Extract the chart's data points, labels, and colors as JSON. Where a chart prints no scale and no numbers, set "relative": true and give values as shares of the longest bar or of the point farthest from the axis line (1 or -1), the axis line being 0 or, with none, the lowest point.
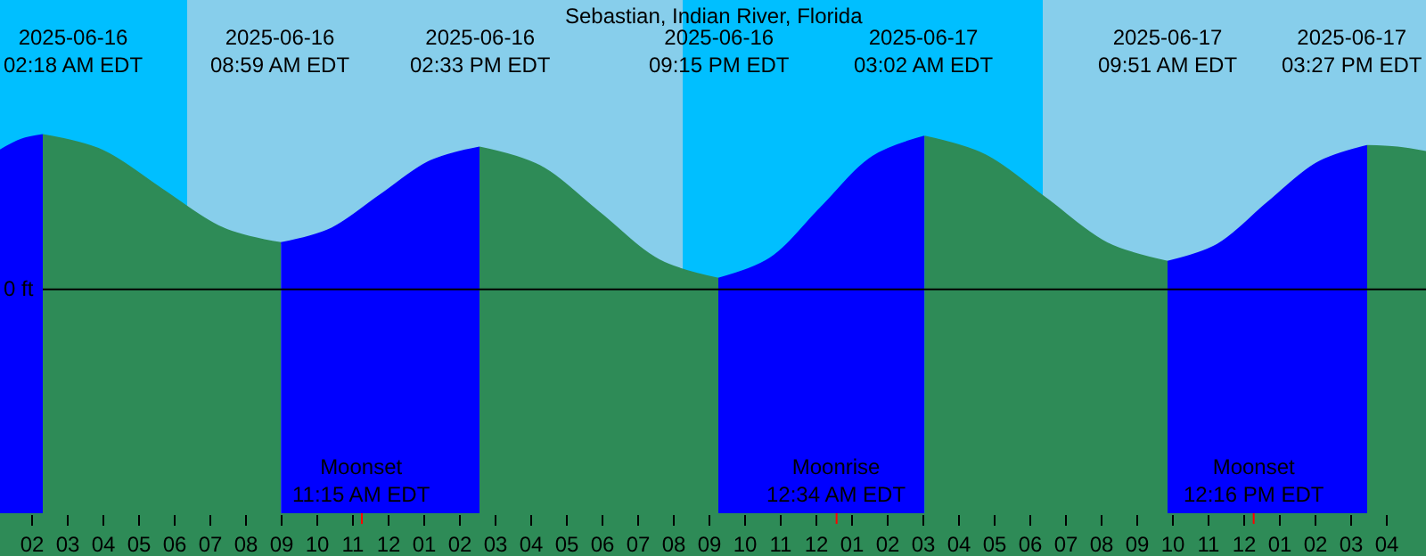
{
  "chart_data": {
    "type": "area",
    "title": "Sebastian, Indian River, Florida",
    "relative": true,
    "xlim": [
      "2025-06-16T01:06",
      "2025-06-17T17:06"
    ],
    "xticks": [
      {
        "value": "2025-06-16T02:00",
        "label": "02"
      },
      {
        "value": "2025-06-16T03:00",
        "label": "03"
      },
      {
        "value": "2025-06-16T04:00",
        "label": "04"
      },
      {
        "value": "2025-06-16T05:00",
        "label": "05"
      },
      {
        "value": "2025-06-16T06:00",
        "label": "06"
      },
      {
        "value": "2025-06-16T07:00",
        "label": "07"
      },
      {
        "value": "2025-06-16T08:00",
        "label": "08"
      },
      {
        "value": "2025-06-16T09:00",
        "label": "09"
      },
      {
        "value": "2025-06-16T10:00",
        "label": "10"
      },
      {
        "value": "2025-06-16T11:00",
        "label": "11"
      },
      {
        "value": "2025-06-16T12:00",
        "label": "12"
      },
      {
        "value": "2025-06-16T13:00",
        "label": "01"
      },
      {
        "value": "2025-06-16T14:00",
        "label": "02"
      },
      {
        "value": "2025-06-16T15:00",
        "label": "03"
      },
      {
        "value": "2025-06-16T16:00",
        "label": "04"
      },
      {
        "value": "2025-06-16T17:00",
        "label": "05"
      },
      {
        "value": "2025-06-16T18:00",
        "label": "06"
      },
      {
        "value": "2025-06-16T19:00",
        "label": "07"
      },
      {
        "value": "2025-06-16T20:00",
        "label": "08"
      },
      {
        "value": "2025-06-16T21:00",
        "label": "09"
      },
      {
        "value": "2025-06-16T22:00",
        "label": "10"
      },
      {
        "value": "2025-06-16T23:00",
        "label": "11"
      },
      {
        "value": "2025-06-17T00:00",
        "label": "12"
      },
      {
        "value": "2025-06-17T01:00",
        "label": "01"
      },
      {
        "value": "2025-06-17T02:00",
        "label": "02"
      },
      {
        "value": "2025-06-17T03:00",
        "label": "03"
      },
      {
        "value": "2025-06-17T04:00",
        "label": "04"
      },
      {
        "value": "2025-06-17T05:00",
        "label": "05"
      },
      {
        "value": "2025-06-17T06:00",
        "label": "06"
      },
      {
        "value": "2025-06-17T07:00",
        "label": "07"
      },
      {
        "value": "2025-06-17T08:00",
        "label": "08"
      },
      {
        "value": "2025-06-17T09:00",
        "label": "09"
      },
      {
        "value": "2025-06-17T10:00",
        "label": "10"
      },
      {
        "value": "2025-06-17T11:00",
        "label": "11"
      },
      {
        "value": "2025-06-17T12:00",
        "label": "12"
      },
      {
        "value": "2025-06-17T13:00",
        "label": "01"
      },
      {
        "value": "2025-06-17T14:00",
        "label": "02"
      },
      {
        "value": "2025-06-17T15:00",
        "label": "03"
      },
      {
        "value": "2025-06-17T16:00",
        "label": "04"
      }
    ],
    "series": [
      {
        "color": "#0000ff",
        "x": [
          "2025-06-16T01:06",
          "2025-06-16T01:42",
          "2025-06-16T02:18"
        ],
        "values": [
          0.9,
          0.97,
          1.0
        ]
      },
      {
        "color": "#2e8b57",
        "x": [
          "2025-06-16T02:18",
          "2025-06-16T03:58",
          "2025-06-16T05:38",
          "2025-06-16T07:19",
          "2025-06-16T08:59"
        ],
        "values": [
          1.0,
          0.9,
          0.65,
          0.4,
          0.3
        ]
      },
      {
        "color": "#0000ff",
        "x": [
          "2025-06-16T08:59",
          "2025-06-16T10:22",
          "2025-06-16T11:46",
          "2025-06-16T13:10",
          "2025-06-16T14:33"
        ],
        "values": [
          0.3,
          0.39,
          0.61,
          0.83,
          0.92
        ]
      },
      {
        "color": "#2e8b57",
        "x": [
          "2025-06-16T14:33",
          "2025-06-16T16:14",
          "2025-06-16T17:54",
          "2025-06-16T19:35",
          "2025-06-16T21:15"
        ],
        "values": [
          0.92,
          0.8,
          0.5,
          0.19,
          0.07
        ]
      },
      {
        "color": "#0000ff",
        "x": [
          "2025-06-16T21:15",
          "2025-06-16T22:42",
          "2025-06-17T00:08",
          "2025-06-17T01:35",
          "2025-06-17T03:02"
        ],
        "values": [
          0.07,
          0.2,
          0.53,
          0.86,
          0.99
        ]
      },
      {
        "color": "#2e8b57",
        "x": [
          "2025-06-17T03:02",
          "2025-06-17T04:44",
          "2025-06-17T06:26",
          "2025-06-17T08:09",
          "2025-06-17T09:51"
        ],
        "values": [
          0.99,
          0.87,
          0.59,
          0.3,
          0.18
        ]
      },
      {
        "color": "#0000ff",
        "x": [
          "2025-06-17T09:51",
          "2025-06-17T11:15",
          "2025-06-17T12:39",
          "2025-06-17T14:03",
          "2025-06-17T15:27"
        ],
        "values": [
          0.18,
          0.29,
          0.56,
          0.82,
          0.93
        ]
      },
      {
        "color": "#2e8b57",
        "x": [
          "2025-06-17T15:27",
          "2025-06-17T16:18",
          "2025-06-17T17:06"
        ],
        "values": [
          0.93,
          0.92,
          0.89
        ]
      }
    ],
    "bands": [
      {
        "axis": "x",
        "from": "2025-06-16T01:06",
        "to": "2025-06-16T06:21",
        "color": "#00bfff"
      },
      {
        "axis": "x",
        "from": "2025-06-16T06:21",
        "to": "2025-06-16T20:15",
        "color": "#87ceeb"
      },
      {
        "axis": "x",
        "from": "2025-06-16T20:15",
        "to": "2025-06-17T06:21",
        "color": "#00bfff"
      },
      {
        "axis": "x",
        "from": "2025-06-17T06:21",
        "to": "2025-06-17T17:06",
        "color": "#87ceeb"
      }
    ],
    "ref_lines": [
      {
        "axis": "y",
        "value": 0,
        "label": "0 ft",
        "color": "#000000"
      },
      {
        "axis": "x",
        "value": "2025-06-16T11:15",
        "label": "Moonset\n11:15 AM EDT",
        "color": "#ff0000"
      },
      {
        "axis": "x",
        "value": "2025-06-17T00:34",
        "label": "Moonrise\n12:34 AM EDT",
        "color": "#ff0000"
      },
      {
        "axis": "x",
        "value": "2025-06-17T12:16",
        "label": "Moonset\n12:16 PM EDT",
        "color": "#ff0000"
      }
    ],
    "annotations": [
      "2025-06-16\n02:18 AM EDT",
      "2025-06-16\n08:59 AM EDT",
      "2025-06-16\n02:33 PM EDT",
      "2025-06-16\n09:15 PM EDT",
      "2025-06-17\n03:02 AM EDT",
      "2025-06-17\n09:51 AM EDT",
      "2025-06-17\n03:27 PM EDT"
    ]
  }
}
